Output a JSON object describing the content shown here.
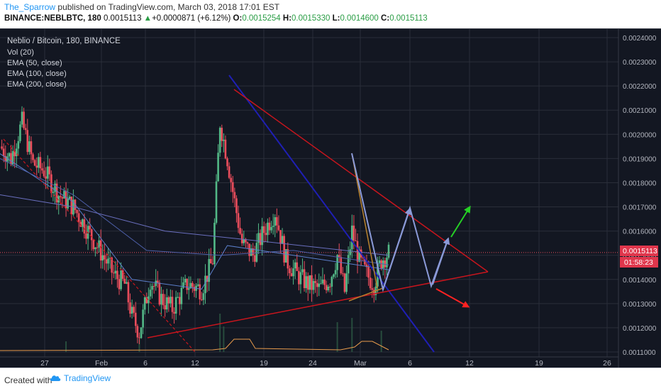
{
  "header": {
    "author": "The_Sparrow",
    "published_text": "published on TradingView.com, March 03, 2018 17:01 EST",
    "symbol": "BINANCE:NEBLBTC, 180",
    "price": "0.0015113",
    "change_arrow": "▲",
    "change": "+0.0000871 (+6.12%)",
    "o_label": "O:",
    "o": "0.0015254",
    "h_label": "H:",
    "h": "0.0015330",
    "l_label": "L:",
    "l": "0.0014600",
    "c_label": "C:",
    "c": "0.0015113"
  },
  "legend": {
    "title": "Neblio / Bitcoin, 180, BINANCE",
    "vol": "Vol (20)",
    "ema50": "EMA (50, close)",
    "ema100": "EMA (100, close)",
    "ema200": "EMA (200, close)"
  },
  "price_badge": {
    "value": "0.0015113",
    "countdown": "01:58:23"
  },
  "footer": {
    "created": "Created with",
    "brand": "TradingView"
  },
  "colors": {
    "background": "#131722",
    "grid": "#2a2e39",
    "up": "#53b987",
    "down": "#eb4d5c",
    "badge": "#e0364c",
    "trendline": "#c8151d",
    "downtrend": "#1f1fb4",
    "projection": "#8b9ad8",
    "bull_arrow": "#25d025",
    "bear_arrow": "#ff2222",
    "volume_line": "#e89b4c"
  },
  "chart_data": {
    "type": "candlestick",
    "y_ticks": [
      "0.0024000",
      "0.0023000",
      "0.0022000",
      "0.0021000",
      "0.0020000",
      "0.0019000",
      "0.0018000",
      "0.0017000",
      "0.0016000",
      "0.0015000",
      "0.0014000",
      "0.0013000",
      "0.0012000",
      "0.0011000"
    ],
    "x_ticks": [
      "27",
      "Feb",
      "6",
      "12",
      "19",
      "24",
      "Mar",
      "6",
      "12",
      "19",
      "26"
    ],
    "ylim": [
      0.0011,
      0.0024
    ],
    "price_path": [
      [
        0,
        0.00195
      ],
      [
        3,
        0.0019
      ],
      [
        6,
        0.00205
      ],
      [
        9,
        0.00188
      ],
      [
        12,
        0.00185
      ],
      [
        16,
        0.00175
      ],
      [
        20,
        0.0017
      ],
      [
        24,
        0.0016
      ],
      [
        28,
        0.0015
      ],
      [
        31,
        0.00142
      ],
      [
        34,
        0.00138
      ],
      [
        36,
        0.00125
      ],
      [
        38,
        0.00118
      ],
      [
        41,
        0.0014
      ],
      [
        44,
        0.00132
      ],
      [
        47,
        0.00128
      ],
      [
        51,
        0.00138
      ],
      [
        55,
        0.00136
      ],
      [
        58,
        0.00148
      ],
      [
        60,
        0.00205
      ],
      [
        62,
        0.0019
      ],
      [
        64,
        0.00172
      ],
      [
        66,
        0.00155
      ],
      [
        69,
        0.0015
      ],
      [
        72,
        0.0016
      ],
      [
        75,
        0.00168
      ],
      [
        78,
        0.00148
      ],
      [
        81,
        0.00142
      ],
      [
        84,
        0.00138
      ],
      [
        87,
        0.00136
      ],
      [
        90,
        0.0014
      ],
      [
        92,
        0.0015
      ],
      [
        94,
        0.00135
      ],
      [
        96,
        0.0016
      ],
      [
        98,
        0.00148
      ],
      [
        100,
        0.00142
      ],
      [
        102,
        0.00138
      ],
      [
        104,
        0.00148
      ],
      [
        106,
        0.00151
      ]
    ],
    "ema50": [
      [
        0,
        0.00192
      ],
      [
        20,
        0.00172
      ],
      [
        36,
        0.0014
      ],
      [
        55,
        0.00136
      ],
      [
        62,
        0.00154
      ],
      [
        80,
        0.0015
      ],
      [
        106,
        0.00144
      ]
    ],
    "ema100": [
      [
        0,
        0.0019
      ],
      [
        20,
        0.00175
      ],
      [
        40,
        0.00152
      ],
      [
        60,
        0.0015
      ],
      [
        80,
        0.00152
      ],
      [
        106,
        0.00146
      ]
    ],
    "ema200": [
      [
        0,
        0.00175
      ],
      [
        20,
        0.0017
      ],
      [
        45,
        0.0016
      ],
      [
        70,
        0.00156
      ],
      [
        106,
        0.0015
      ]
    ],
    "volume_spikes": [
      [
        18,
        0.25
      ],
      [
        38,
        0.3
      ],
      [
        60,
        0.9
      ],
      [
        61,
        0.6
      ],
      [
        92,
        0.7
      ],
      [
        96,
        0.8
      ],
      [
        104,
        0.5
      ]
    ],
    "last_price": 0.0015113
  }
}
